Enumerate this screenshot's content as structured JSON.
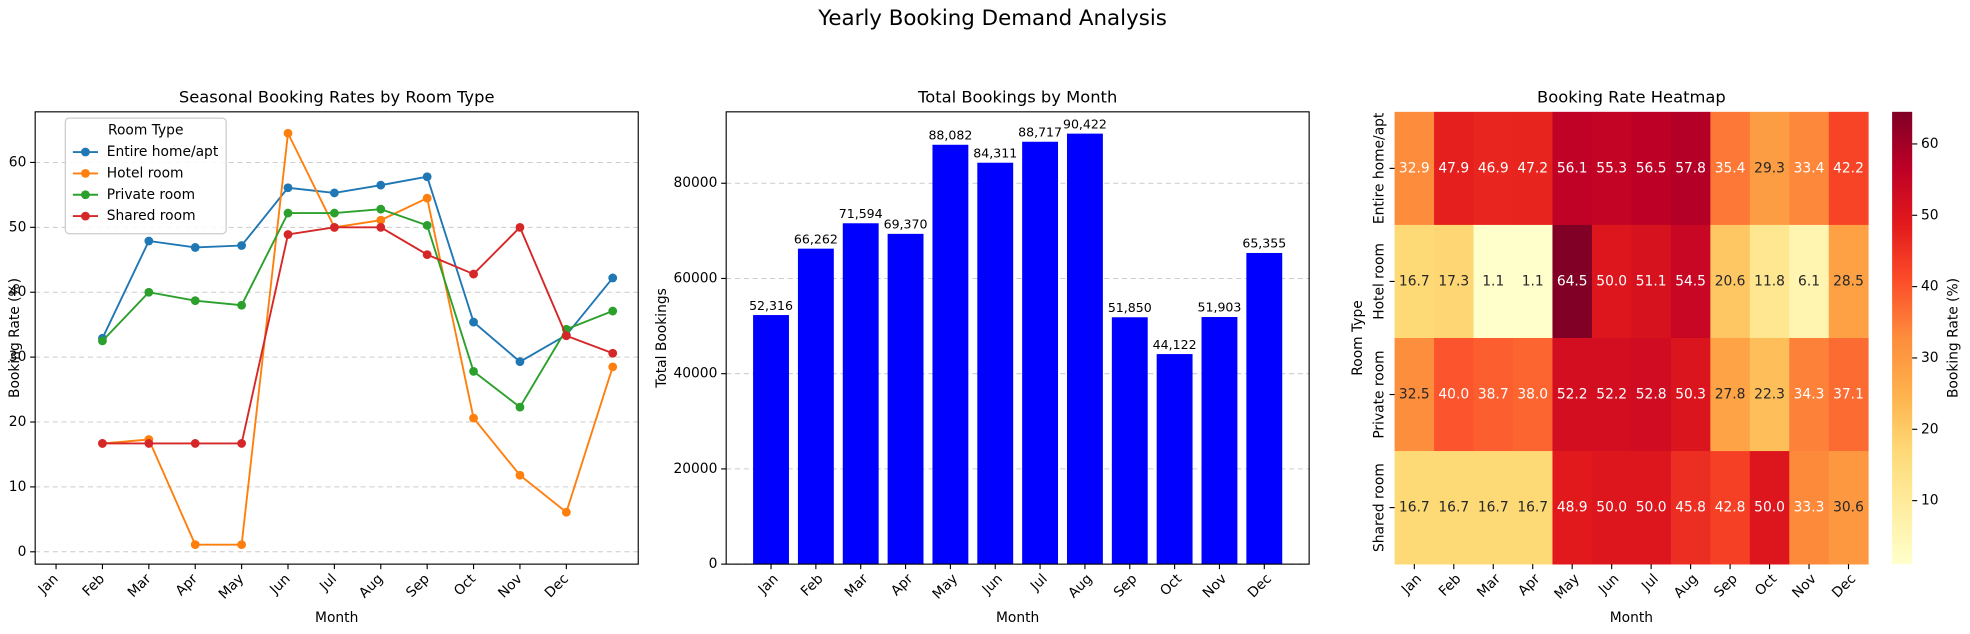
{
  "title": "Yearly Booking Demand Analysis",
  "chart_data": [
    {
      "type": "line",
      "title": "Seasonal Booking Rates by Room Type",
      "xlabel": "Month",
      "ylabel": "Booking Rate (%)",
      "x": [
        1,
        2,
        3,
        4,
        5,
        6,
        7,
        8,
        9,
        10,
        11,
        12
      ],
      "xlim": [
        -0.45,
        12.55
      ],
      "xticks": [
        {
          "value": 0,
          "label": "Jan"
        },
        {
          "value": 1,
          "label": "Feb"
        },
        {
          "value": 2,
          "label": "Mar"
        },
        {
          "value": 3,
          "label": "Apr"
        },
        {
          "value": 4,
          "label": "May"
        },
        {
          "value": 5,
          "label": "Jun"
        },
        {
          "value": 6,
          "label": "Jul"
        },
        {
          "value": 7,
          "label": "Aug"
        },
        {
          "value": 8,
          "label": "Sep"
        },
        {
          "value": 9,
          "label": "Oct"
        },
        {
          "value": 10,
          "label": "Nov"
        },
        {
          "value": 11,
          "label": "Dec"
        }
      ],
      "ylim": [
        -1.9,
        67.8
      ],
      "yticks": [
        0,
        10,
        20,
        30,
        40,
        50,
        60
      ],
      "grid": true,
      "legend_title": "Room Type",
      "legend": "upper left",
      "series": [
        {
          "name": "Entire home/apt",
          "color": "#1f77b4",
          "values": [
            32.9,
            47.9,
            46.9,
            47.2,
            56.1,
            55.3,
            56.5,
            57.8,
            35.4,
            29.3,
            33.4,
            42.2
          ]
        },
        {
          "name": "Hotel room",
          "color": "#ff7f0e",
          "values": [
            16.7,
            17.3,
            1.1,
            1.1,
            64.5,
            50.0,
            51.1,
            54.5,
            20.6,
            11.8,
            6.1,
            28.5
          ]
        },
        {
          "name": "Private room",
          "color": "#2ca02c",
          "values": [
            32.5,
            40.0,
            38.7,
            38.0,
            52.2,
            52.2,
            52.8,
            50.3,
            27.8,
            22.3,
            34.3,
            37.1
          ]
        },
        {
          "name": "Shared room",
          "color": "#d62728",
          "values": [
            16.7,
            16.7,
            16.7,
            16.7,
            48.9,
            50.0,
            50.0,
            45.8,
            42.8,
            50.0,
            33.3,
            30.6
          ]
        }
      ]
    },
    {
      "type": "bar",
      "title": "Total Bookings by Month",
      "xlabel": "Month",
      "ylabel": "Total Bookings",
      "color": "#0000ff",
      "categories": [
        "Jan",
        "Feb",
        "Mar",
        "Apr",
        "May",
        "Jun",
        "Jul",
        "Aug",
        "Sep",
        "Oct",
        "Nov",
        "Dec"
      ],
      "values": [
        52316,
        66262,
        71594,
        69370,
        88082,
        84311,
        88717,
        90422,
        51850,
        44122,
        51903,
        65355
      ],
      "value_labels": [
        "52,316",
        "66,262",
        "71,594",
        "69,370",
        "88,082",
        "84,311",
        "88,717",
        "90,422",
        "51,850",
        "44,122",
        "51,903",
        "65,355"
      ],
      "ylim": [
        0,
        95000
      ],
      "yticks": [
        0,
        20000,
        40000,
        60000,
        80000
      ],
      "grid": true
    },
    {
      "type": "heatmap",
      "title": "Booking Rate Heatmap",
      "xlabel": "Month",
      "ylabel": "Room Type",
      "colorbar_label": "Booking Rate (%)",
      "categories": [
        "Jan",
        "Feb",
        "Mar",
        "Apr",
        "May",
        "Jun",
        "Jul",
        "Aug",
        "Sep",
        "Oct",
        "Nov",
        "Dec"
      ],
      "rows": [
        "Entire home/apt",
        "Hotel room",
        "Private room",
        "Shared room"
      ],
      "values": [
        [
          32.9,
          47.9,
          46.9,
          47.2,
          56.1,
          55.3,
          56.5,
          57.8,
          35.4,
          29.3,
          33.4,
          42.2
        ],
        [
          16.7,
          17.3,
          1.1,
          1.1,
          64.5,
          50.0,
          51.1,
          54.5,
          20.6,
          11.8,
          6.1,
          28.5
        ],
        [
          32.5,
          40.0,
          38.7,
          38.0,
          52.2,
          52.2,
          52.8,
          50.3,
          27.8,
          22.3,
          34.3,
          37.1
        ],
        [
          16.7,
          16.7,
          16.7,
          16.7,
          48.9,
          50.0,
          50.0,
          45.8,
          42.8,
          50.0,
          33.3,
          30.6
        ]
      ],
      "value_labels": [
        [
          "32.9",
          "47.9",
          "46.9",
          "47.2",
          "56.1",
          "55.3",
          "56.5",
          "57.8",
          "35.4",
          "29.3",
          "33.4",
          "42.2"
        ],
        [
          "16.7",
          "17.3",
          "1.1",
          "1.1",
          "64.5",
          "50.0",
          "51.1",
          "54.5",
          "20.6",
          "11.8",
          "6.1",
          "28.5"
        ],
        [
          "32.5",
          "40.0",
          "38.7",
          "38.0",
          "52.2",
          "52.2",
          "52.8",
          "50.3",
          "27.8",
          "22.3",
          "34.3",
          "37.1"
        ],
        [
          "16.7",
          "16.7",
          "16.7",
          "16.7",
          "48.9",
          "50.0",
          "50.0",
          "45.8",
          "42.8",
          "50.0",
          "33.3",
          "30.6"
        ]
      ],
      "colormap": "YlOrRd",
      "clim": [
        1.1,
        64.5
      ],
      "cticks": [
        10,
        20,
        30,
        40,
        50,
        60
      ]
    }
  ]
}
